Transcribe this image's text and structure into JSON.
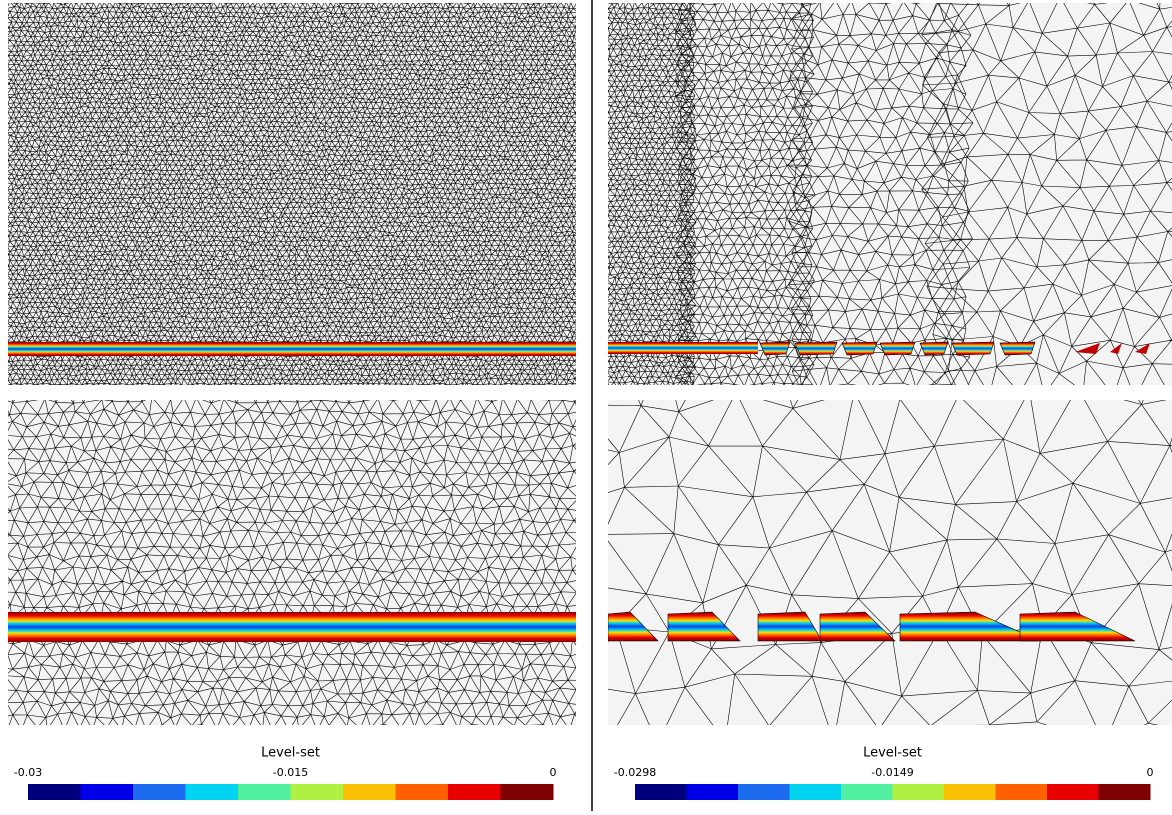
{
  "colorbars": [
    {
      "title": "Level-set",
      "lim": [
        -0.03,
        0
      ],
      "ticks": [
        -0.03,
        -0.015,
        0
      ]
    },
    {
      "title": "Level-set",
      "lim": [
        -0.0298,
        0
      ],
      "ticks": [
        -0.0298,
        -0.0149,
        0
      ]
    }
  ],
  "colors": [
    "#00007f",
    "#0000e8",
    "#1d6cf0",
    "#00d4f0",
    "#50f0a0",
    "#b0f040",
    "#f8c000",
    "#ff6000",
    "#e80000",
    "#7f0000"
  ]
}
